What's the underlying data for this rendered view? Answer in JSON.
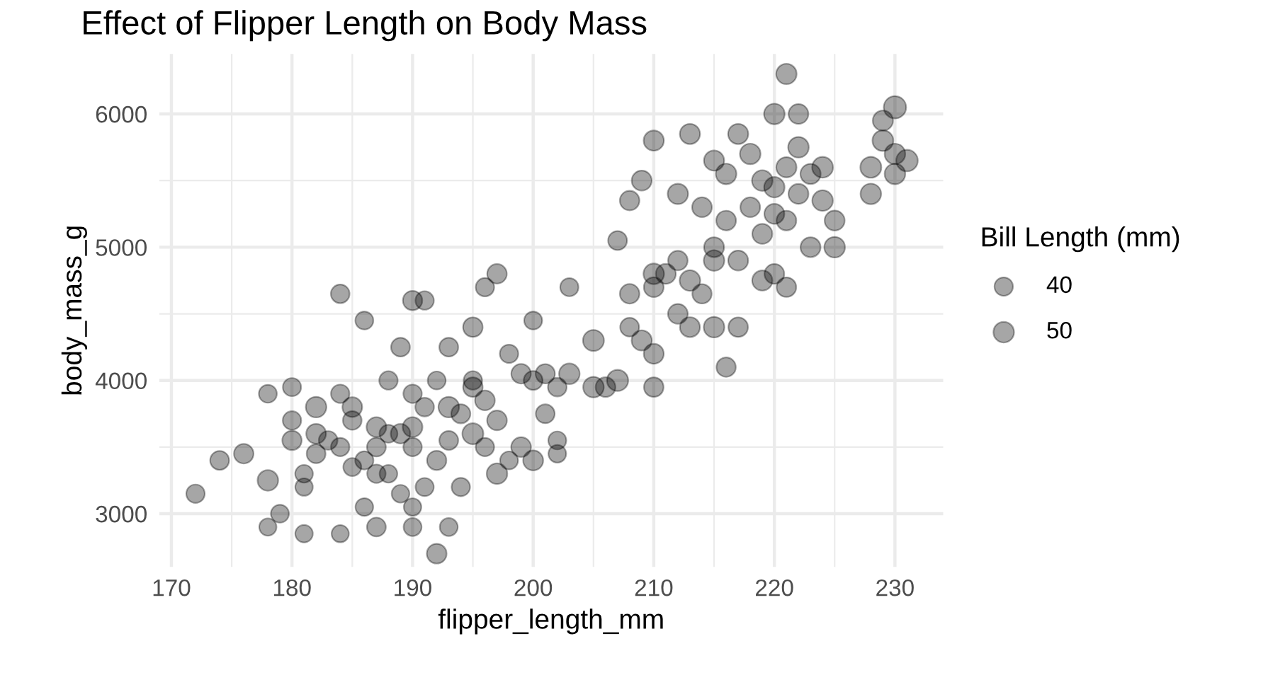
{
  "chart_data": {
    "type": "bubble",
    "title": "Effect of Flipper Length on Body Mass",
    "xlabel": "flipper_length_mm",
    "ylabel": "body_mass_g",
    "legend_title": "Bill Length (mm)",
    "grid": true,
    "xlim": [
      169,
      234
    ],
    "ylim": [
      2600,
      6450
    ],
    "xticks": [
      170,
      180,
      190,
      200,
      210,
      220,
      230
    ],
    "yticks": [
      3000,
      4000,
      5000,
      6000
    ],
    "size_legend": [
      40,
      50
    ],
    "series": [
      {
        "color": "#000000",
        "x": [
          172,
          174,
          176,
          178,
          178,
          178,
          179,
          180,
          180,
          180,
          181,
          181,
          181,
          182,
          182,
          182,
          183,
          184,
          184,
          184,
          184,
          185,
          185,
          185,
          186,
          186,
          186,
          187,
          187,
          187,
          187,
          188,
          188,
          188,
          189,
          189,
          189,
          190,
          190,
          190,
          190,
          190,
          190,
          191,
          191,
          191,
          192,
          192,
          192,
          193,
          193,
          193,
          193,
          194,
          194,
          195,
          195,
          195,
          195,
          196,
          196,
          196,
          197,
          197,
          197,
          198,
          198,
          199,
          199,
          200,
          200,
          200,
          201,
          201,
          202,
          202,
          202,
          203,
          203,
          205,
          205,
          206,
          207,
          207,
          208,
          208,
          208,
          209,
          209,
          210,
          210,
          210,
          210,
          210,
          211,
          212,
          212,
          212,
          213,
          213,
          213,
          214,
          214,
          215,
          215,
          215,
          215,
          216,
          216,
          216,
          217,
          217,
          217,
          218,
          218,
          219,
          219,
          219,
          220,
          220,
          220,
          220,
          221,
          221,
          221,
          221,
          222,
          222,
          222,
          223,
          223,
          224,
          224,
          225,
          225,
          228,
          228,
          229,
          229,
          230,
          230,
          230,
          231
        ],
        "values": [
          3150,
          3400,
          3450,
          3250,
          3900,
          2900,
          3000,
          3550,
          3950,
          3700,
          3300,
          3200,
          2850,
          3800,
          3600,
          3450,
          3550,
          3500,
          4650,
          3900,
          2850,
          3800,
          3350,
          3700,
          4450,
          3400,
          3050,
          3500,
          3650,
          2900,
          3300,
          3300,
          4000,
          3600,
          4250,
          3600,
          3150,
          4600,
          3900,
          3500,
          2900,
          3650,
          3050,
          4600,
          3800,
          3200,
          2700,
          3400,
          4000,
          3800,
          3550,
          4250,
          2900,
          3750,
          3200,
          4400,
          3600,
          4000,
          3950,
          4700,
          3850,
          3500,
          4800,
          3300,
          3700,
          4200,
          3400,
          4050,
          3500,
          3400,
          4000,
          4450,
          3750,
          4050,
          3950,
          3550,
          3450,
          4050,
          4700,
          4300,
          3950,
          3950,
          4000,
          5050,
          4650,
          5350,
          4400,
          5500,
          4300,
          4700,
          4200,
          3950,
          5800,
          4800,
          4800,
          4500,
          5400,
          4900,
          5850,
          4750,
          4400,
          5300,
          4650,
          4900,
          5000,
          5650,
          4400,
          5200,
          4100,
          5550,
          4400,
          4900,
          5850,
          5700,
          5300,
          4750,
          5100,
          5500,
          5450,
          4800,
          6000,
          5250,
          5200,
          5600,
          4700,
          6300,
          5750,
          5400,
          6000,
          5550,
          5000,
          5350,
          5600,
          5200,
          5000,
          5600,
          5400,
          5950,
          5800,
          5700,
          6050,
          5550,
          5650
        ],
        "sizes": [
          40,
          42,
          45,
          50,
          38,
          35,
          38,
          44,
          39,
          40,
          37,
          36,
          36,
          50,
          46,
          42,
          41,
          40,
          41,
          40,
          35,
          46,
          38,
          41,
          38,
          39,
          37,
          42,
          46,
          42,
          40,
          37,
          40,
          38,
          42,
          45,
          37,
          44,
          40,
          40,
          38,
          46,
          36,
          40,
          41,
          39,
          46,
          44,
          38,
          50,
          42,
          42,
          38,
          43,
          40,
          45,
          52,
          40,
          45,
          40,
          46,
          40,
          45,
          50,
          46,
          40,
          38,
          45,
          46,
          47,
          42,
          38,
          42,
          44,
          41,
          38,
          37,
          50,
          39,
          52,
          50,
          46,
          53,
          42,
          45,
          45,
          42,
          47,
          48,
          46,
          47,
          45,
          48,
          50,
          47,
          46,
          49,
          45,
          48,
          50,
          47,
          46,
          44,
          50,
          47,
          48,
          50,
          46,
          44,
          50,
          45,
          47,
          48,
          50,
          46,
          48,
          47,
          50,
          49,
          46,
          50,
          47,
          46,
          48,
          45,
          49,
          50,
          47,
          46,
          48,
          47,
          50,
          51,
          47,
          50,
          52,
          50,
          48,
          51,
          50,
          59,
          50,
          55
        ]
      }
    ]
  }
}
